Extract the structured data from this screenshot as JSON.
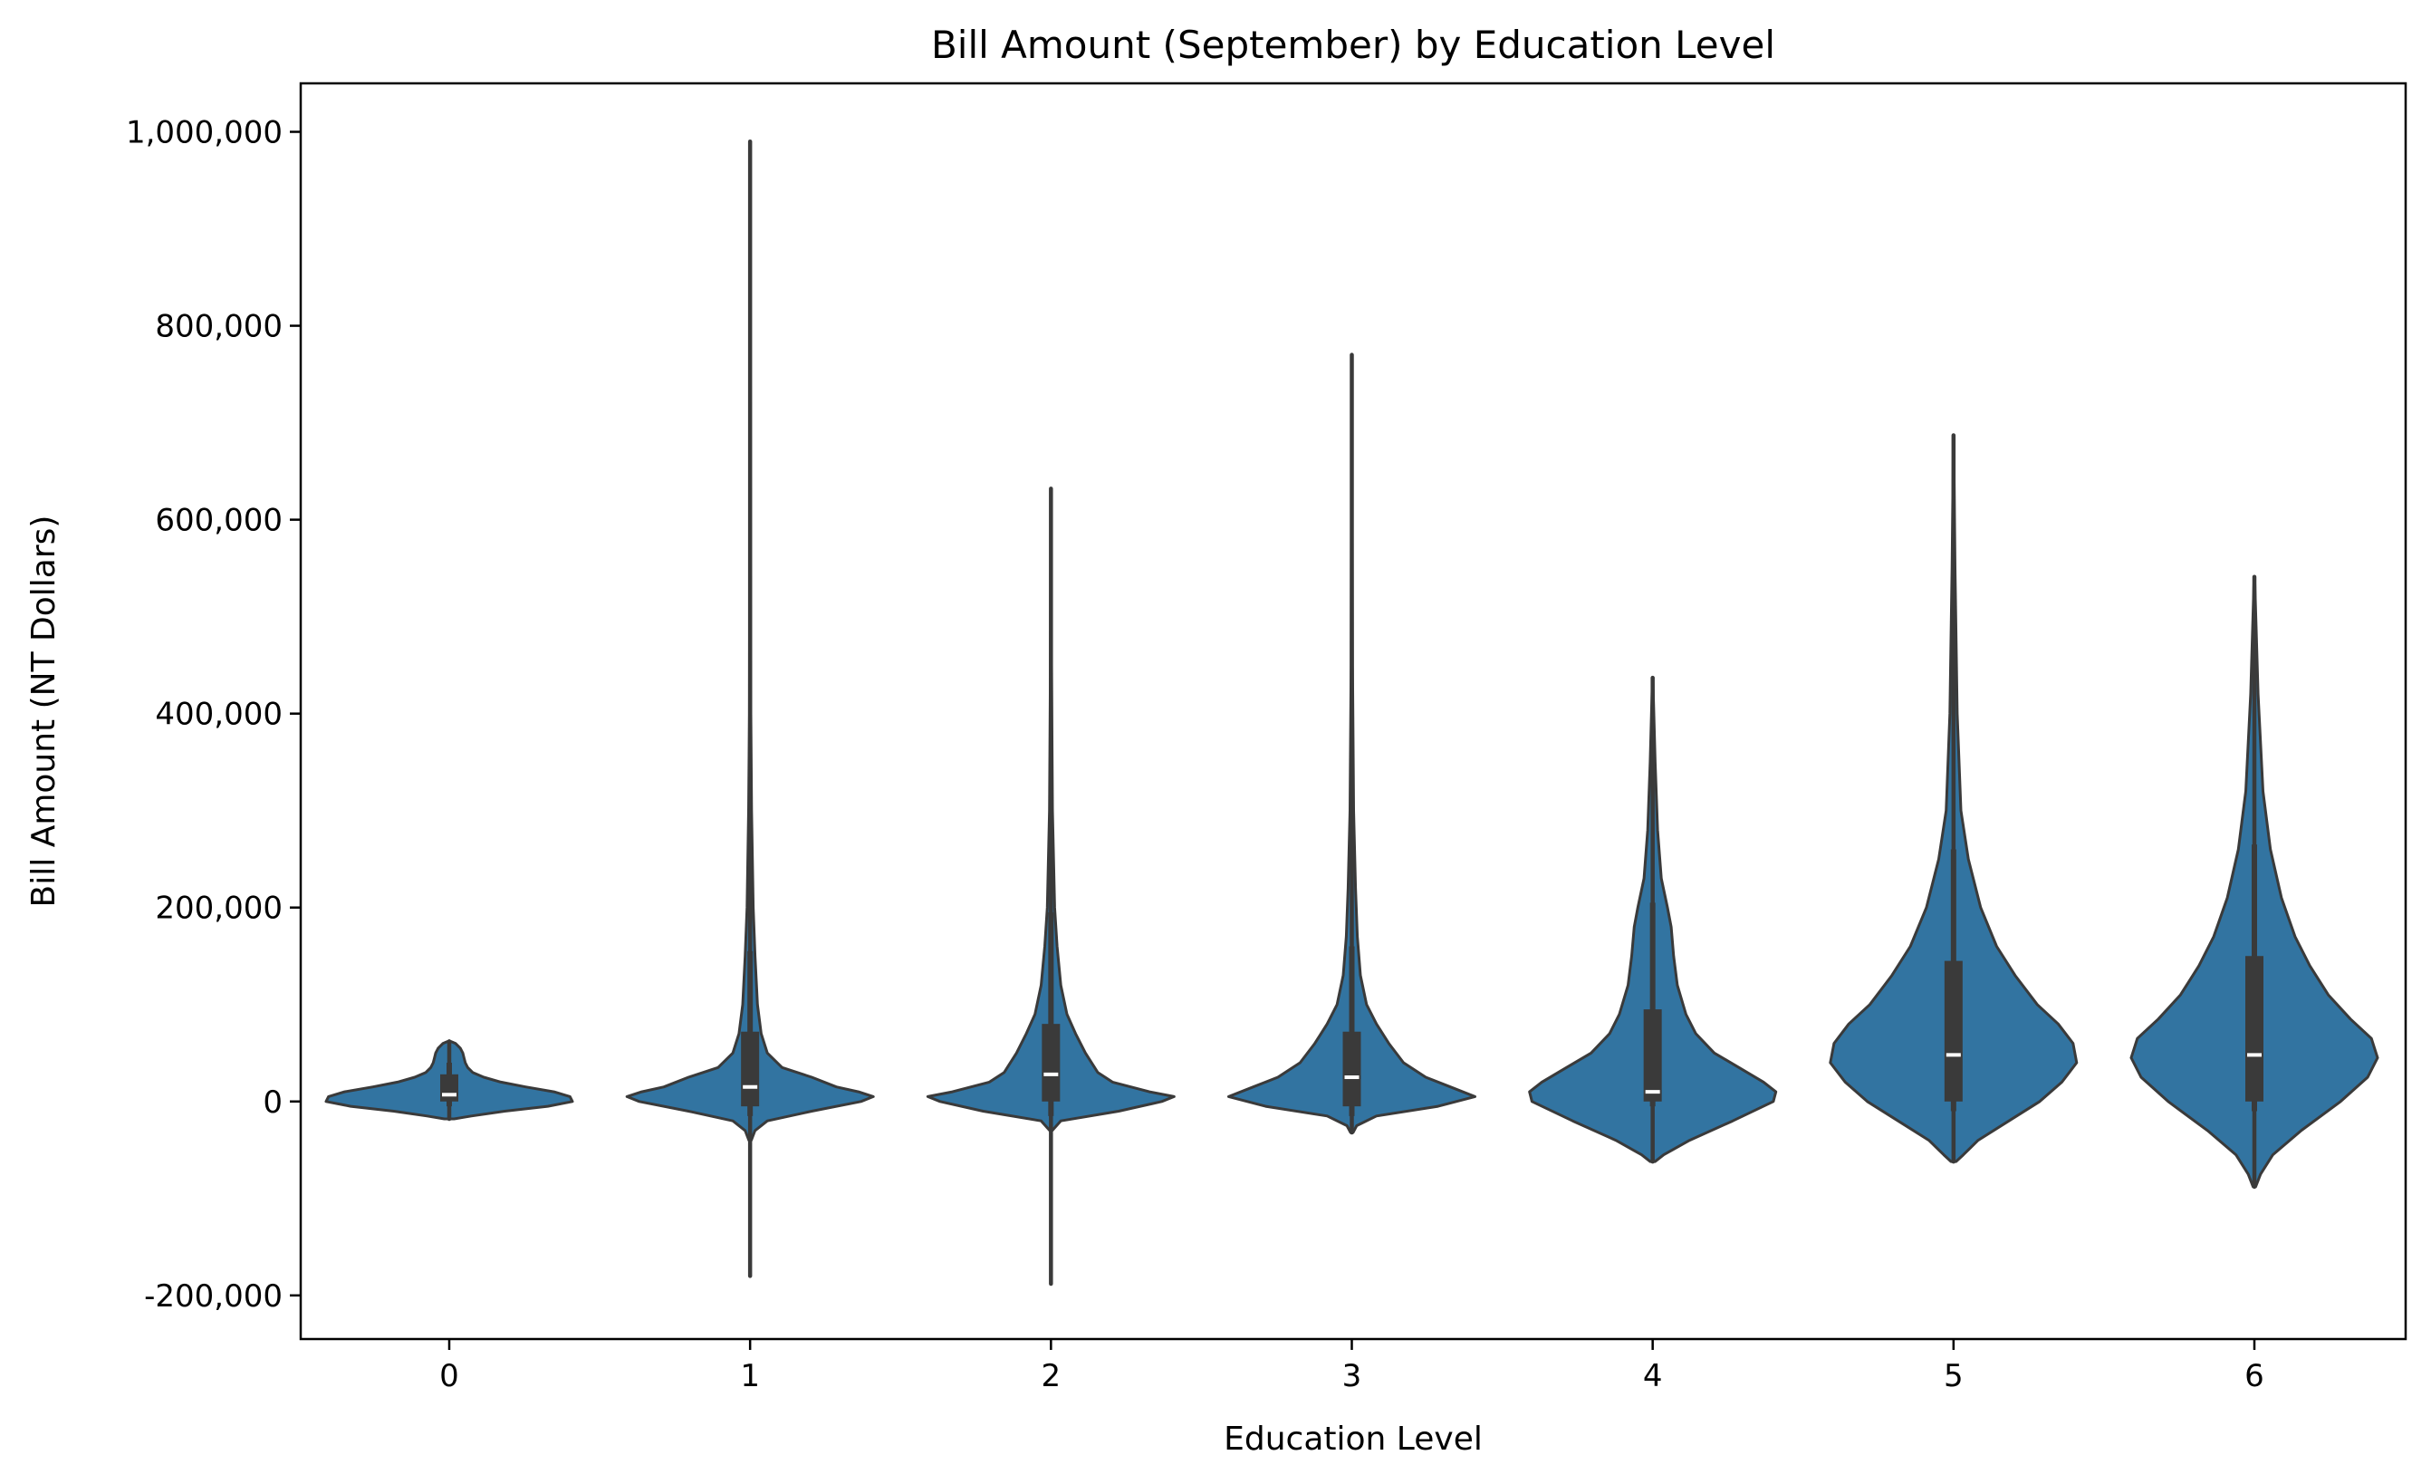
{
  "chart_data": {
    "type": "violin",
    "title": "Bill Amount (September) by Education Level",
    "xlabel": "Education Level",
    "ylabel": "Bill Amount (NT Dollars)",
    "ylim": [
      -245000,
      1050000
    ],
    "yticks": [
      -200000,
      0,
      200000,
      400000,
      600000,
      800000,
      1000000
    ],
    "ytick_labels": [
      "-200,000",
      "0",
      "200,000",
      "400,000",
      "600,000",
      "800,000",
      "1,000,000"
    ],
    "categories": [
      "0",
      "1",
      "2",
      "3",
      "4",
      "5",
      "6"
    ],
    "color": "#3274a1",
    "edge_color": "#3a3a3a",
    "grid": false,
    "legend": "none",
    "violins": [
      {
        "category": "0",
        "min": -18000,
        "max": 62000,
        "q1": 0,
        "median": 7000,
        "q3": 28000,
        "whisker_low": -5000,
        "whisker_high": 40000,
        "profile": [
          [
            -18000,
            0.04
          ],
          [
            -15000,
            0.18
          ],
          [
            -10000,
            0.45
          ],
          [
            -5000,
            0.8
          ],
          [
            0,
            1.0
          ],
          [
            5000,
            0.98
          ],
          [
            10000,
            0.85
          ],
          [
            15000,
            0.62
          ],
          [
            20000,
            0.42
          ],
          [
            25000,
            0.28
          ],
          [
            30000,
            0.19
          ],
          [
            35000,
            0.15
          ],
          [
            40000,
            0.13
          ],
          [
            45000,
            0.12
          ],
          [
            50000,
            0.11
          ],
          [
            55000,
            0.09
          ],
          [
            60000,
            0.05
          ],
          [
            62000,
            0.01
          ]
        ]
      },
      {
        "category": "1",
        "min": -180000,
        "max": 990000,
        "q1": -5000,
        "median": 15000,
        "q3": 72000,
        "whisker_low": -15000,
        "whisker_high": 155000,
        "profile": [
          [
            -40000,
            0.01
          ],
          [
            -30000,
            0.04
          ],
          [
            -20000,
            0.14
          ],
          [
            -10000,
            0.5
          ],
          [
            0,
            0.9
          ],
          [
            5000,
            1.0
          ],
          [
            10000,
            0.88
          ],
          [
            15000,
            0.7
          ],
          [
            25000,
            0.5
          ],
          [
            35000,
            0.26
          ],
          [
            50000,
            0.14
          ],
          [
            70000,
            0.09
          ],
          [
            100000,
            0.06
          ],
          [
            150000,
            0.04
          ],
          [
            200000,
            0.025
          ],
          [
            300000,
            0.012
          ],
          [
            400000,
            0.006
          ],
          [
            700000,
            0.003
          ],
          [
            990000,
            0.001
          ]
        ]
      },
      {
        "category": "2",
        "min": -188000,
        "max": 632000,
        "q1": 0,
        "median": 28000,
        "q3": 80000,
        "whisker_low": -15000,
        "whisker_high": 195000,
        "profile": [
          [
            -30000,
            0.01
          ],
          [
            -20000,
            0.08
          ],
          [
            -10000,
            0.55
          ],
          [
            0,
            0.9
          ],
          [
            5000,
            1.0
          ],
          [
            10000,
            0.8
          ],
          [
            20000,
            0.5
          ],
          [
            30000,
            0.38
          ],
          [
            50000,
            0.28
          ],
          [
            70000,
            0.2
          ],
          [
            90000,
            0.13
          ],
          [
            120000,
            0.08
          ],
          [
            160000,
            0.05
          ],
          [
            200000,
            0.03
          ],
          [
            300000,
            0.012
          ],
          [
            450000,
            0.005
          ],
          [
            632000,
            0.001
          ]
        ]
      },
      {
        "category": "3",
        "min": -32000,
        "max": 770000,
        "q1": -5000,
        "median": 25000,
        "q3": 72000,
        "whisker_low": -15000,
        "whisker_high": 160000,
        "profile": [
          [
            -32000,
            0.01
          ],
          [
            -25000,
            0.04
          ],
          [
            -15000,
            0.2
          ],
          [
            -5000,
            0.7
          ],
          [
            5000,
            1.0
          ],
          [
            15000,
            0.8
          ],
          [
            25000,
            0.6
          ],
          [
            40000,
            0.42
          ],
          [
            60000,
            0.3
          ],
          [
            80000,
            0.2
          ],
          [
            100000,
            0.12
          ],
          [
            130000,
            0.07
          ],
          [
            170000,
            0.045
          ],
          [
            220000,
            0.03
          ],
          [
            300000,
            0.015
          ],
          [
            450000,
            0.006
          ],
          [
            770000,
            0.001
          ]
        ]
      },
      {
        "category": "4",
        "min": -62000,
        "max": 437000,
        "q1": 0,
        "median": 10000,
        "q3": 95000,
        "whisker_low": -5000,
        "whisker_high": 205000,
        "profile": [
          [
            -62000,
            0.02
          ],
          [
            -55000,
            0.09
          ],
          [
            -40000,
            0.3
          ],
          [
            -20000,
            0.65
          ],
          [
            0,
            0.98
          ],
          [
            10000,
            1.0
          ],
          [
            20000,
            0.9
          ],
          [
            35000,
            0.7
          ],
          [
            50000,
            0.5
          ],
          [
            70000,
            0.35
          ],
          [
            90000,
            0.27
          ],
          [
            120000,
            0.2
          ],
          [
            150000,
            0.17
          ],
          [
            180000,
            0.15
          ],
          [
            200000,
            0.12
          ],
          [
            230000,
            0.07
          ],
          [
            280000,
            0.04
          ],
          [
            350000,
            0.02
          ],
          [
            437000,
            0.002
          ]
        ]
      },
      {
        "category": "5",
        "min": -62000,
        "max": 687000,
        "q1": 0,
        "median": 48000,
        "q3": 145000,
        "whisker_low": -10000,
        "whisker_high": 260000,
        "profile": [
          [
            -62000,
            0.02
          ],
          [
            -55000,
            0.08
          ],
          [
            -40000,
            0.2
          ],
          [
            -20000,
            0.45
          ],
          [
            0,
            0.7
          ],
          [
            20000,
            0.88
          ],
          [
            40000,
            1.0
          ],
          [
            60000,
            0.97
          ],
          [
            80000,
            0.85
          ],
          [
            100000,
            0.68
          ],
          [
            130000,
            0.5
          ],
          [
            160000,
            0.35
          ],
          [
            200000,
            0.22
          ],
          [
            250000,
            0.12
          ],
          [
            300000,
            0.06
          ],
          [
            400000,
            0.03
          ],
          [
            550000,
            0.012
          ],
          [
            687000,
            0.001
          ]
        ]
      },
      {
        "category": "6",
        "min": -88000,
        "max": 541000,
        "q1": 0,
        "median": 48000,
        "q3": 150000,
        "whisker_low": -10000,
        "whisker_high": 265000,
        "profile": [
          [
            -88000,
            0.01
          ],
          [
            -75000,
            0.05
          ],
          [
            -55000,
            0.15
          ],
          [
            -30000,
            0.38
          ],
          [
            0,
            0.7
          ],
          [
            25000,
            0.92
          ],
          [
            45000,
            1.0
          ],
          [
            65000,
            0.95
          ],
          [
            85000,
            0.78
          ],
          [
            110000,
            0.6
          ],
          [
            140000,
            0.45
          ],
          [
            170000,
            0.33
          ],
          [
            210000,
            0.22
          ],
          [
            260000,
            0.13
          ],
          [
            320000,
            0.07
          ],
          [
            420000,
            0.03
          ],
          [
            541000,
            0.002
          ]
        ]
      }
    ]
  }
}
